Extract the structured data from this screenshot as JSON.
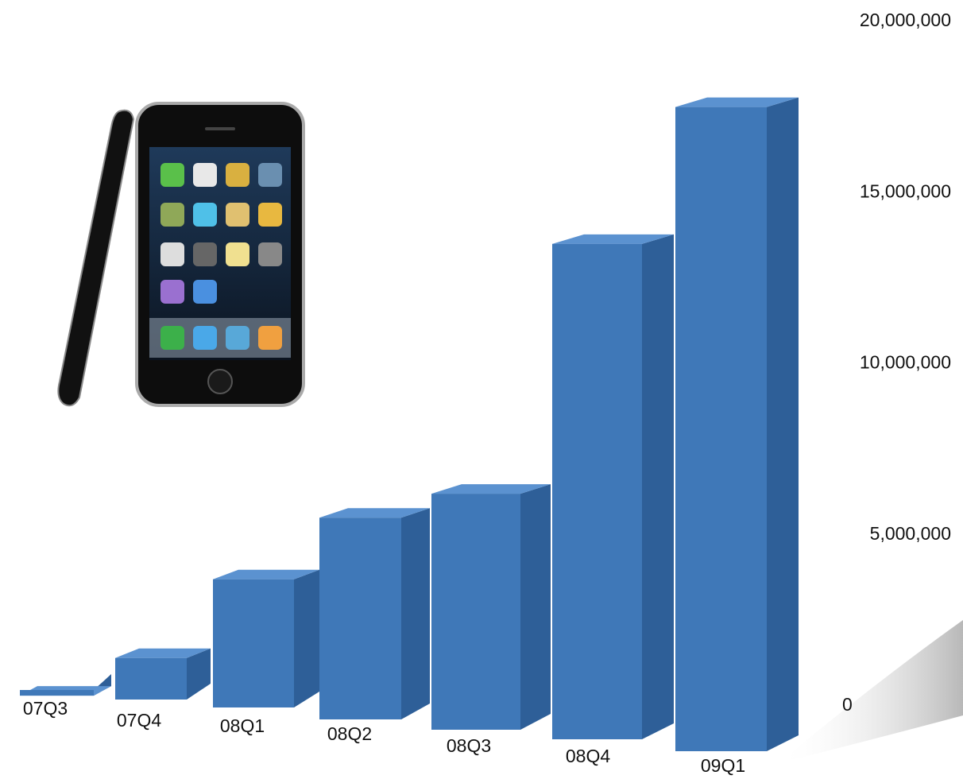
{
  "chart_data": {
    "type": "bar",
    "categories": [
      "07Q3",
      "07Q4",
      "08Q1",
      "08Q2",
      "08Q3",
      "08Q4",
      "09Q1"
    ],
    "values": [
      300000,
      1400000,
      3700000,
      5500000,
      6200000,
      13500000,
      17500000
    ],
    "color": "#3f78b8",
    "ylim": [
      0,
      20000000
    ],
    "yticks": [
      0,
      {
        "value": 5000000,
        "label": "5,000,000"
      },
      {
        "value": 10000000,
        "label": "10,000,000"
      },
      {
        "value": 15000000,
        "label": "15,000,000"
      },
      {
        "value": 20000000,
        "label": "20,000,000"
      }
    ],
    "grid": false
  }
}
